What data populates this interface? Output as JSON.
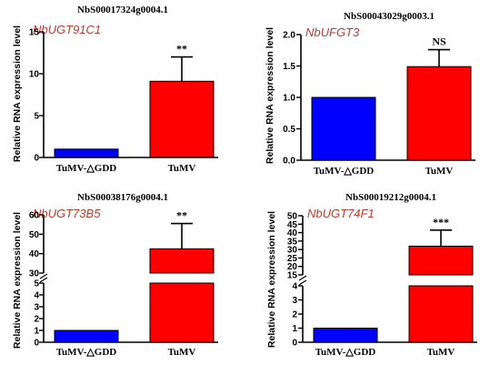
{
  "chart_data": [
    {
      "type": "bar",
      "title": "NbS00017324g0004.1",
      "gene": "NbUGT91C1",
      "ylabel": "Relative RNA expression level",
      "categories": [
        "TuMV-△GDD",
        "TuMV"
      ],
      "values": [
        1.0,
        9.1
      ],
      "errors": [
        0,
        2.9
      ],
      "significance": "**",
      "ylim": [
        0,
        15
      ],
      "yticks": [
        0,
        5,
        10,
        15
      ],
      "bar_colors": [
        "#0000ff",
        "#ff0000"
      ]
    },
    {
      "type": "bar",
      "title": "NbS00043029g0003.1",
      "gene": "NbUFGT3",
      "ylabel": "Relative RNA expression level",
      "categories": [
        "TuMV-△GDD",
        "TuMV"
      ],
      "values": [
        1.0,
        1.49
      ],
      "errors": [
        0,
        0.27
      ],
      "significance": "NS",
      "ylim": [
        0,
        2.0
      ],
      "yticks": [
        "0.0",
        "0.5",
        "1.0",
        "1.5",
        "2.0"
      ],
      "bar_colors": [
        "#0000ff",
        "#ff0000"
      ]
    },
    {
      "type": "bar",
      "title": "NbS00038176g0004.1",
      "gene": "NbUGT73B5",
      "ylabel": "Relative RNA expression level",
      "categories": [
        "TuMV-△GDD",
        "TuMV"
      ],
      "values": [
        1.0,
        42.5
      ],
      "errors": [
        0,
        13
      ],
      "significance": "**",
      "axis_break": {
        "lower": [
          0,
          5
        ],
        "upper": [
          30,
          60
        ]
      },
      "yticks_lower": [
        0,
        1,
        2,
        3,
        4,
        5
      ],
      "yticks_upper": [
        30,
        40,
        50,
        60
      ],
      "bar_colors": [
        "#0000ff",
        "#ff0000"
      ]
    },
    {
      "type": "bar",
      "title": "NbS00019212g0004.1",
      "gene": "NbUGT74F1",
      "ylabel": "Relative RNA expression level",
      "categories": [
        "TuMV-△GDD",
        "TuMV"
      ],
      "values": [
        1.0,
        32
      ],
      "errors": [
        0,
        9.5
      ],
      "significance": "***",
      "axis_break": {
        "lower": [
          0,
          4
        ],
        "upper": [
          15,
          50
        ]
      },
      "yticks_lower": [
        0,
        1,
        2,
        3,
        4
      ],
      "yticks_upper": [
        15,
        20,
        25,
        30,
        35,
        40,
        45,
        50
      ],
      "bar_colors": [
        "#0000ff",
        "#ff0000"
      ]
    }
  ]
}
